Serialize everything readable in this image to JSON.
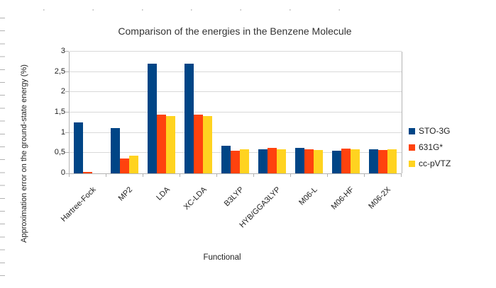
{
  "chart_data": {
    "type": "bar",
    "title": "Comparison of the energies in the Benzene Molecule",
    "xlabel": "Functional",
    "ylabel": "Approximation error on the ground-state energy (%)",
    "categories": [
      "Hartree-Fock",
      "MP2",
      "LDA",
      "XC-LDA",
      "B3LYP",
      "HYB/GGA3LYP",
      "M06-L",
      "M06-HF",
      "M06-2X"
    ],
    "series": [
      {
        "name": "STO-3G",
        "color": "#004586",
        "values": [
          1.25,
          1.12,
          2.7,
          2.7,
          0.68,
          0.6,
          0.63,
          0.56,
          0.6
        ]
      },
      {
        "name": "631G*",
        "color": "#FF420E",
        "values": [
          0.04,
          0.37,
          1.45,
          1.45,
          0.55,
          0.63,
          0.59,
          0.61,
          0.57
        ]
      },
      {
        "name": "cc-pVTZ",
        "color": "#FFD320",
        "values": [
          0.0,
          0.43,
          1.42,
          1.42,
          0.59,
          0.6,
          0.58,
          0.6,
          0.6
        ]
      }
    ],
    "ylim": [
      0,
      3
    ],
    "ytick_step": 0.5,
    "ytick_labels": [
      "0",
      "0,5",
      "1",
      "1,5",
      "2",
      "2,5",
      "3"
    ],
    "grid": true,
    "legend_position": "right"
  }
}
